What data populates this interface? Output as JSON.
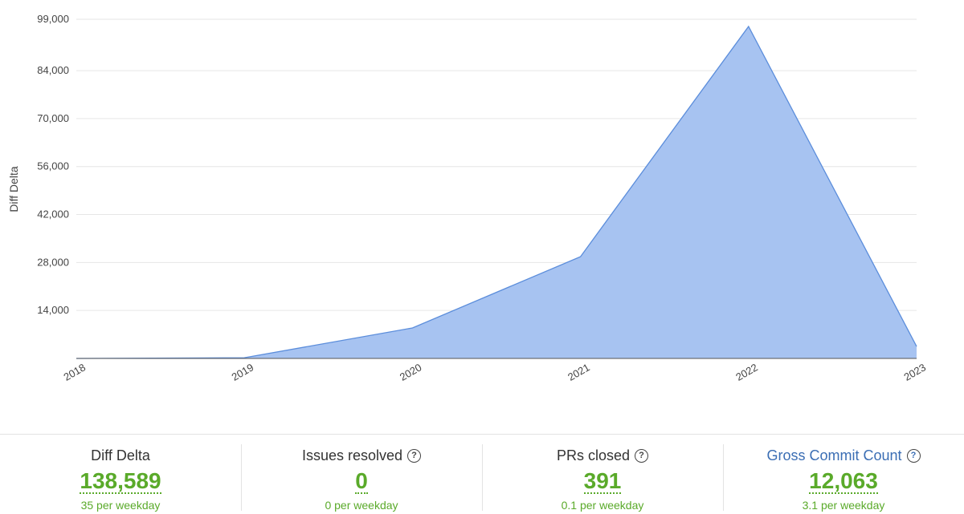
{
  "chart_data": {
    "type": "area",
    "y_label": "Diff Delta",
    "categories": [
      "2018",
      "2019",
      "2020",
      "2021",
      "2022",
      "2023"
    ],
    "values": [
      0,
      200,
      8900,
      29700,
      96900,
      3500
    ],
    "color": "#a7c3f1",
    "line_color": "#5b8ddb",
    "ylim": [
      0,
      99000
    ],
    "yticks": [
      {
        "value": 14000,
        "label": "14,000"
      },
      {
        "value": 28000,
        "label": "28,000"
      },
      {
        "value": 42000,
        "label": "42,000"
      },
      {
        "value": 56000,
        "label": "56,000"
      },
      {
        "value": 70000,
        "label": "70,000"
      },
      {
        "value": 84000,
        "label": "84,000"
      },
      {
        "value": 99000,
        "label": "99,000"
      }
    ],
    "grid": true
  },
  "stats": [
    {
      "title": "Diff Delta",
      "value": "138,589",
      "rate": "35 per weekday"
    },
    {
      "title": "Issues resolved",
      "value": "0",
      "rate": "0 per weekday"
    },
    {
      "title": "PRs closed",
      "value": "391",
      "rate": "0.1 per weekday"
    },
    {
      "title": "Gross Commit Count",
      "value": "12,063",
      "rate": "3.1 per weekday"
    }
  ]
}
